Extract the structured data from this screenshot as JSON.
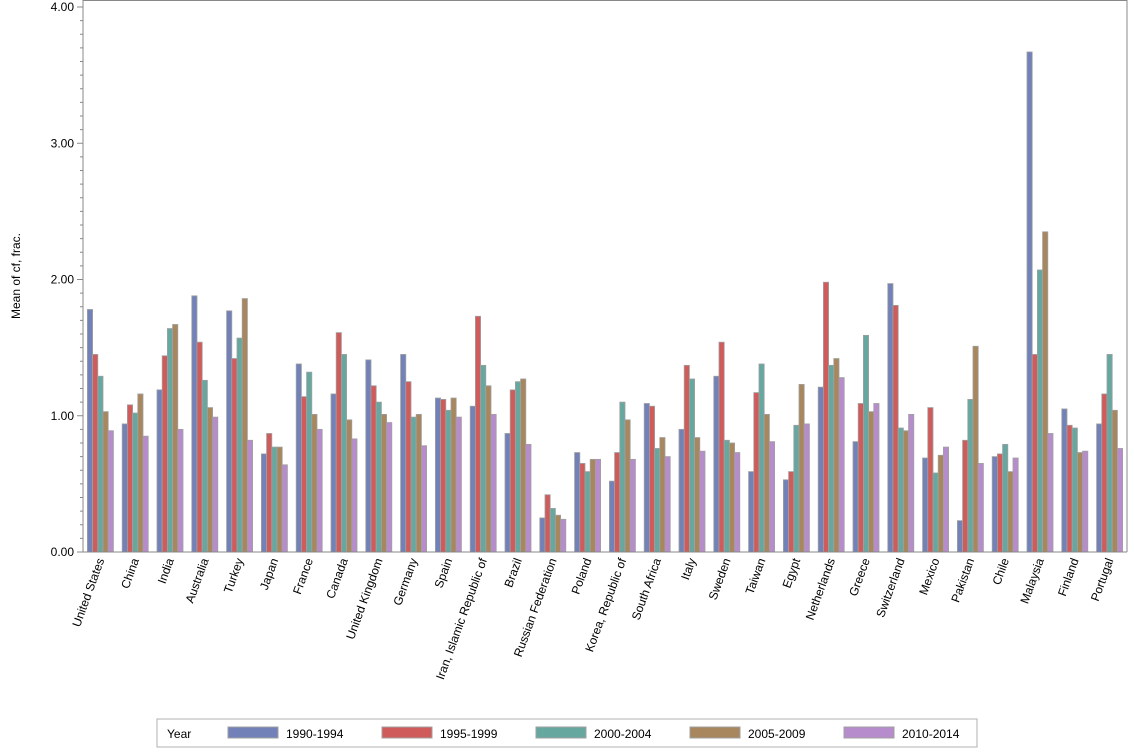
{
  "chart_data": {
    "type": "bar",
    "title": "",
    "xlabel": "",
    "ylabel": "Mean of cf, frac.",
    "ylim": [
      0,
      4
    ],
    "yticks": [
      "0.00",
      "1.00",
      "2.00",
      "3.00",
      "4.00"
    ],
    "legend_title": "Year",
    "legend_position": "bottom",
    "categories": [
      "United States",
      "China",
      "India",
      "Australia",
      "Turkey",
      "Japan",
      "France",
      "Canada",
      "United Kingdom",
      "Germany",
      "Spain",
      "Iran, Islamic Republic of",
      "Brazil",
      "Russian Federation",
      "Poland",
      "Korea, Republic of",
      "South Africa",
      "Italy",
      "Sweden",
      "Taiwan",
      "Egypt",
      "Netherlands",
      "Greece",
      "Switzerland",
      "Mexico",
      "Pakistan",
      "Chile",
      "Malaysia",
      "Finland",
      "Portugal"
    ],
    "series": [
      {
        "name": "1990-1994",
        "color": "#7281b8",
        "values": [
          1.78,
          0.94,
          1.19,
          1.88,
          1.77,
          0.72,
          1.38,
          1.16,
          1.41,
          1.45,
          1.13,
          1.07,
          0.87,
          0.25,
          0.73,
          0.52,
          1.09,
          0.9,
          1.29,
          0.59,
          0.53,
          1.21,
          0.81,
          1.97,
          0.69,
          0.23,
          0.7,
          3.67,
          1.05,
          0.94
        ]
      },
      {
        "name": "1995-1999",
        "color": "#d05b5b",
        "values": [
          1.45,
          1.08,
          1.44,
          1.54,
          1.42,
          0.87,
          1.14,
          1.61,
          1.22,
          1.25,
          1.12,
          1.73,
          1.19,
          0.42,
          0.65,
          0.73,
          1.07,
          1.37,
          1.54,
          1.17,
          0.59,
          1.98,
          1.09,
          1.81,
          1.06,
          0.82,
          0.72,
          1.45,
          0.93,
          1.16
        ]
      },
      {
        "name": "2000-2004",
        "color": "#66a8a0",
        "values": [
          1.29,
          1.02,
          1.64,
          1.26,
          1.57,
          0.77,
          1.32,
          1.45,
          1.1,
          0.99,
          1.04,
          1.37,
          1.25,
          0.32,
          0.59,
          1.1,
          0.76,
          1.27,
          0.82,
          1.38,
          0.93,
          1.37,
          1.59,
          0.91,
          0.58,
          1.12,
          0.79,
          2.07,
          0.91,
          1.45
        ]
      },
      {
        "name": "2005-2009",
        "color": "#a8875e",
        "values": [
          1.03,
          1.16,
          1.67,
          1.06,
          1.86,
          0.77,
          1.01,
          0.97,
          1.01,
          1.01,
          1.13,
          1.22,
          1.27,
          0.27,
          0.68,
          0.97,
          0.84,
          0.84,
          0.8,
          1.01,
          1.23,
          1.42,
          1.03,
          0.89,
          0.71,
          1.51,
          0.59,
          2.35,
          0.73,
          1.04
        ]
      },
      {
        "name": "2010-2014",
        "color": "#b68ccc",
        "values": [
          0.89,
          0.85,
          0.9,
          0.99,
          0.82,
          0.64,
          0.9,
          0.83,
          0.95,
          0.78,
          0.99,
          1.01,
          0.79,
          0.24,
          0.68,
          0.68,
          0.7,
          0.74,
          0.73,
          0.81,
          0.94,
          1.28,
          1.09,
          1.01,
          0.77,
          0.65,
          0.69,
          0.87,
          0.74,
          0.76
        ]
      }
    ]
  }
}
